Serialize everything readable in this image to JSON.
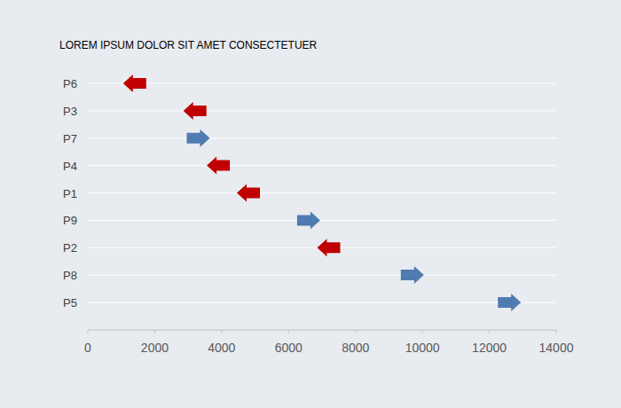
{
  "chart_data": {
    "type": "scatter",
    "orientation": "horizontal",
    "title": "LOREM IPSUM DOLOR SIT AMET CONSECTETUER",
    "categories": [
      "P6",
      "P3",
      "P7",
      "P4",
      "P1",
      "P9",
      "P2",
      "P8",
      "P5"
    ],
    "series": [
      {
        "color": "#c00000",
        "marker": "arrow-left",
        "values": [
          1400,
          3200,
          null,
          3900,
          4800,
          null,
          7200,
          null,
          null
        ]
      },
      {
        "color": "#4f7bb0",
        "marker": "arrow-right",
        "values": [
          null,
          null,
          3300,
          null,
          null,
          6600,
          null,
          9700,
          12600
        ]
      }
    ],
    "xlim": [
      0,
      14000
    ],
    "xticks": [
      0,
      2000,
      4000,
      6000,
      8000,
      10000,
      12000,
      14000
    ],
    "grid": true
  }
}
